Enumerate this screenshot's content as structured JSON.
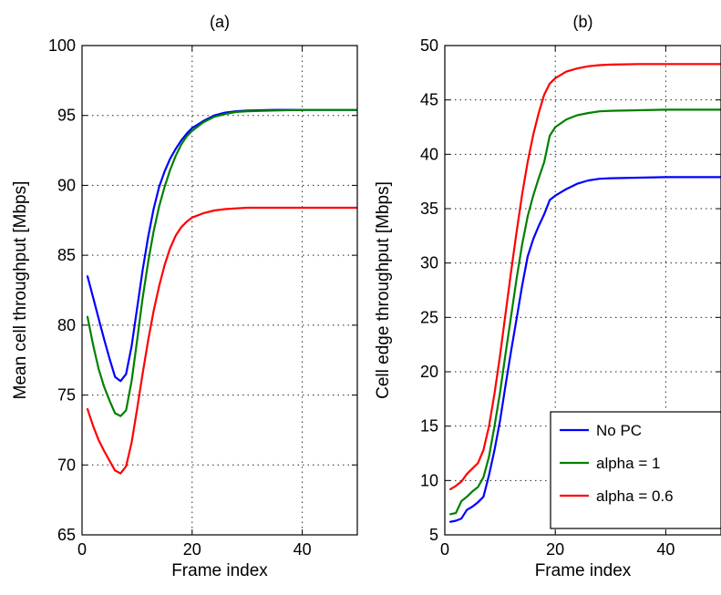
{
  "chart_data": [
    {
      "type": "line",
      "title": "(a)",
      "xlabel": "Frame index",
      "ylabel": "Mean cell throughput [Mbps]",
      "xlim": [
        0,
        50
      ],
      "ylim": [
        65,
        100
      ],
      "xticks": [
        0,
        20,
        40
      ],
      "yticks": [
        65,
        70,
        75,
        80,
        85,
        90,
        95,
        100
      ],
      "grid": true,
      "series": [
        {
          "name": "No PC",
          "color": "#0000ff",
          "x": [
            1,
            2,
            3,
            4,
            5,
            6,
            7,
            8,
            9,
            10,
            11,
            12,
            13,
            14,
            15,
            16,
            17,
            18,
            19,
            20,
            22,
            24,
            26,
            28,
            30,
            35,
            40,
            45,
            50
          ],
          "y": [
            83.5,
            82.0,
            80.5,
            79.0,
            77.6,
            76.3,
            76.0,
            76.5,
            78.5,
            81.2,
            83.9,
            86.3,
            88.3,
            89.9,
            91.0,
            91.9,
            92.6,
            93.2,
            93.7,
            94.1,
            94.6,
            95.0,
            95.2,
            95.3,
            95.35,
            95.4,
            95.4,
            95.4,
            95.4
          ]
        },
        {
          "name": "alpha = 1",
          "color": "#008000",
          "x": [
            1,
            2,
            3,
            4,
            5,
            6,
            7,
            8,
            9,
            10,
            11,
            12,
            13,
            14,
            15,
            16,
            17,
            18,
            19,
            20,
            22,
            24,
            26,
            28,
            30,
            35,
            40,
            45,
            50
          ],
          "y": [
            80.6,
            78.6,
            76.9,
            75.6,
            74.6,
            73.7,
            73.5,
            73.9,
            76.0,
            78.9,
            81.9,
            84.5,
            86.7,
            88.5,
            89.9,
            91.1,
            92.1,
            92.9,
            93.5,
            93.9,
            94.5,
            94.9,
            95.1,
            95.25,
            95.3,
            95.35,
            95.4,
            95.4,
            95.4
          ]
        },
        {
          "name": "alpha = 0.6",
          "color": "#ff0000",
          "x": [
            1,
            2,
            3,
            4,
            5,
            6,
            7,
            8,
            9,
            10,
            11,
            12,
            13,
            14,
            15,
            16,
            17,
            18,
            19,
            20,
            22,
            24,
            26,
            28,
            30,
            35,
            40,
            45,
            50
          ],
          "y": [
            74.0,
            72.8,
            71.8,
            71.0,
            70.3,
            69.6,
            69.4,
            69.9,
            71.6,
            74.0,
            76.5,
            78.9,
            81.0,
            82.8,
            84.3,
            85.5,
            86.4,
            87.0,
            87.4,
            87.7,
            88.0,
            88.2,
            88.3,
            88.35,
            88.4,
            88.4,
            88.4,
            88.4,
            88.4
          ]
        }
      ]
    },
    {
      "type": "line",
      "title": "(b)",
      "xlabel": "Frame index",
      "ylabel": "Cell edge throughput [Mbps]",
      "xlim": [
        0,
        50
      ],
      "ylim": [
        5,
        50
      ],
      "xticks": [
        0,
        20,
        40
      ],
      "yticks": [
        5,
        10,
        15,
        20,
        25,
        30,
        35,
        40,
        45,
        50
      ],
      "grid": true,
      "legend": {
        "position": "lower-right",
        "entries": [
          "No PC",
          "alpha = 1",
          "alpha = 0.6"
        ]
      },
      "series": [
        {
          "name": "No PC",
          "color": "#0000ff",
          "x": [
            1,
            2,
            3,
            4,
            5,
            6,
            7,
            8,
            9,
            10,
            11,
            12,
            13,
            14,
            15,
            16,
            17,
            18,
            19,
            20,
            22,
            24,
            26,
            28,
            30,
            35,
            40,
            45,
            50
          ],
          "y": [
            6.2,
            6.3,
            6.5,
            7.3,
            7.6,
            8.0,
            8.5,
            10.5,
            12.8,
            15.5,
            18.8,
            21.9,
            24.9,
            27.9,
            30.6,
            32.2,
            33.4,
            34.5,
            35.8,
            36.2,
            36.8,
            37.3,
            37.6,
            37.75,
            37.8,
            37.85,
            37.9,
            37.9,
            37.9
          ]
        },
        {
          "name": "alpha = 1",
          "color": "#008000",
          "x": [
            1,
            2,
            3,
            4,
            5,
            6,
            7,
            8,
            9,
            10,
            11,
            12,
            13,
            14,
            15,
            16,
            17,
            18,
            19,
            20,
            22,
            24,
            26,
            28,
            30,
            35,
            40,
            45,
            50
          ],
          "y": [
            6.9,
            7.0,
            8.1,
            8.5,
            9.0,
            9.4,
            10.3,
            12.2,
            15.0,
            18.1,
            21.7,
            25.1,
            28.6,
            31.7,
            34.3,
            36.2,
            37.8,
            39.3,
            41.7,
            42.5,
            43.2,
            43.6,
            43.8,
            43.95,
            44.0,
            44.05,
            44.1,
            44.1,
            44.1
          ]
        },
        {
          "name": "alpha = 0.6",
          "color": "#ff0000",
          "x": [
            1,
            2,
            3,
            4,
            5,
            6,
            7,
            8,
            9,
            10,
            11,
            12,
            13,
            14,
            15,
            16,
            17,
            18,
            19,
            20,
            22,
            24,
            26,
            28,
            30,
            35,
            40,
            45,
            50
          ],
          "y": [
            9.2,
            9.5,
            9.9,
            10.6,
            11.1,
            11.6,
            12.8,
            15.0,
            18.0,
            21.5,
            25.4,
            29.2,
            32.9,
            36.3,
            39.3,
            41.8,
            43.8,
            45.5,
            46.5,
            47.0,
            47.6,
            47.9,
            48.1,
            48.2,
            48.25,
            48.3,
            48.3,
            48.3,
            48.3
          ]
        }
      ]
    }
  ]
}
